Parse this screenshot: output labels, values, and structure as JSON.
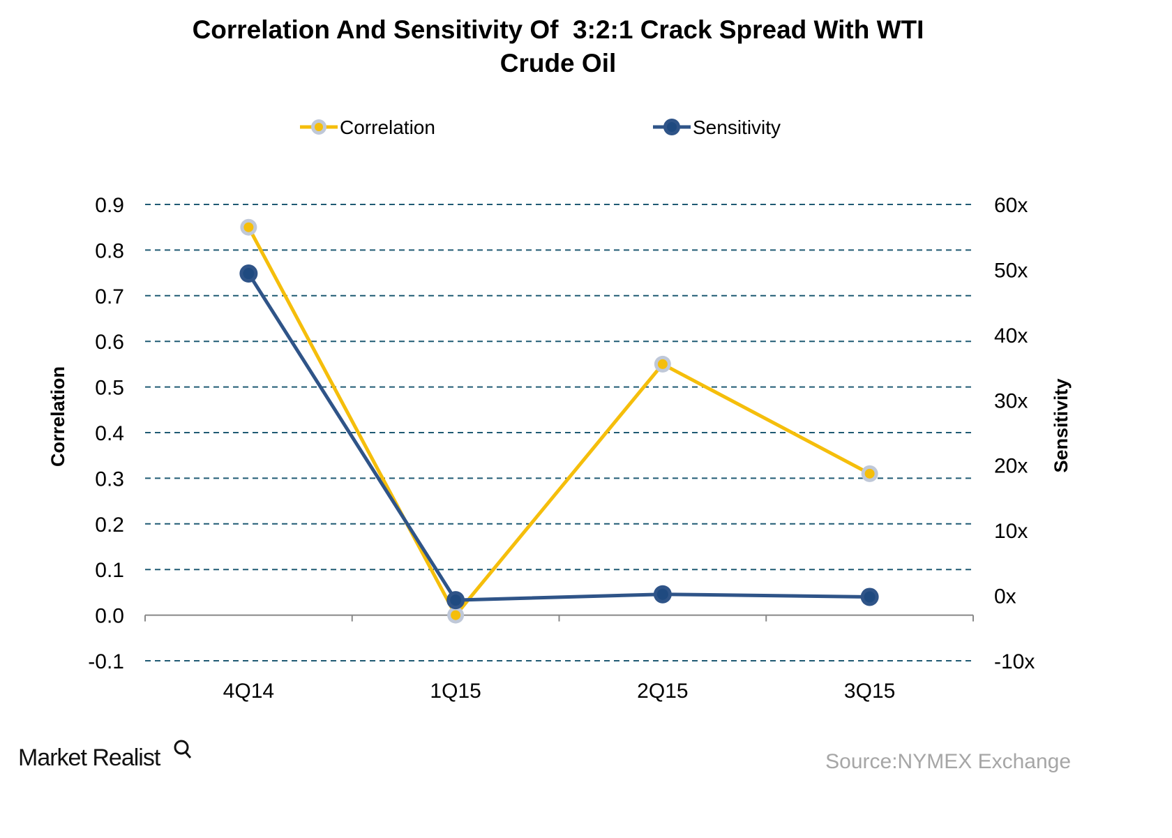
{
  "chart_data": {
    "type": "line",
    "title_lines": [
      "Correlation And Sensitivity Of  3:2:1 Crack Spread With WTI",
      "Crude Oil"
    ],
    "categories": [
      "4Q14",
      "1Q15",
      "2Q15",
      "3Q15"
    ],
    "y_left": {
      "label": "Correlation",
      "range": [
        -0.1,
        0.9
      ],
      "ticks": [
        "0.9",
        "0.8",
        "0.7",
        "0.6",
        "0.5",
        "0.4",
        "0.3",
        "0.2",
        "0.1",
        "0.0",
        "-0.1"
      ]
    },
    "y_right": {
      "label": "Sensitivity",
      "range": [
        -10,
        60
      ],
      "ticks": [
        "60x",
        "50x",
        "40x",
        "30x",
        "20x",
        "10x",
        "0x",
        "-10x"
      ]
    },
    "grid": true,
    "legend_position": "top",
    "series": [
      {
        "name": "Correlation",
        "axis": "left",
        "color": "#f5be0b",
        "marker_color": "#bfc8d8",
        "values": [
          0.85,
          0.0,
          0.55,
          0.31
        ]
      },
      {
        "name": "Sensitivity",
        "axis": "right",
        "color": "#2f5488",
        "marker_color": "#1f4a80",
        "values": [
          49.4,
          -0.7,
          0.2,
          -0.2
        ]
      }
    ]
  },
  "footer": {
    "logo": "Market Realist",
    "source": "Source:NYMEX Exchange"
  }
}
